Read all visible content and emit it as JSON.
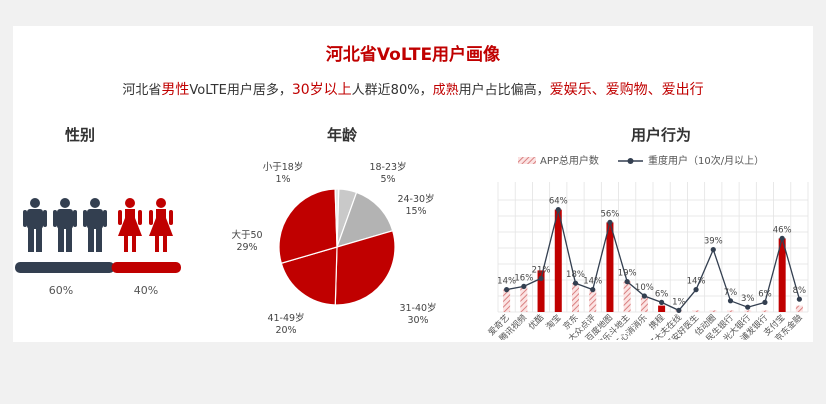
{
  "header": {
    "title": "河北省VoLTE用户画像",
    "subtitle": {
      "p1": "河北省",
      "p2": "男性",
      "p3": "VoLTE用户居多，",
      "p4": "30岁以上",
      "p5": "人群近80%，",
      "p6": "成熟",
      "p7": "用户占比偏高，",
      "p8": "爱娱乐、爱购物、爱出行"
    }
  },
  "gender": {
    "title": "性别",
    "male_pct_label": "60%",
    "female_pct_label": "40%",
    "male_share": 0.6,
    "colors": {
      "male": "#333f50",
      "female": "#c00000"
    }
  },
  "age": {
    "title": "年龄",
    "chart_data": {
      "type": "pie",
      "slices": [
        {
          "label": "18-23岁",
          "pct_label": "5%",
          "value": 5,
          "color": "#c9c9c9"
        },
        {
          "label": "24-30岁",
          "pct_label": "15%",
          "value": 15,
          "color": "#b3b3b3"
        },
        {
          "label": "31-40岁",
          "pct_label": "30%",
          "value": 30,
          "color": "#c00000"
        },
        {
          "label": "41-49岁",
          "pct_label": "20%",
          "value": 20,
          "color": "#c00000"
        },
        {
          "label": "大于50",
          "pct_label": "29%",
          "value": 29,
          "color": "#c00000"
        },
        {
          "label": "小于18岁",
          "pct_label": "1%",
          "value": 1,
          "color": "#e6e6e6"
        }
      ]
    }
  },
  "behavior": {
    "title": "用户行为",
    "legend": {
      "bar": "APP总用户数",
      "line": "重度用户（10次/月以上）"
    },
    "chart_data": {
      "type": "bar",
      "categories": [
        "爱奇艺",
        "腾讯视频",
        "优酷",
        "淘宝",
        "京东",
        "大众点评",
        "百度地图",
        "欢乐斗地主",
        "开心消消乐",
        "携程",
        "好大夫在线",
        "平安好医生",
        "估动圈",
        "民生银行",
        "光大银行",
        "浦发银行",
        "支付宝",
        "京东金融"
      ],
      "series": [
        {
          "kind": "bar",
          "values": [
            14,
            16,
            26,
            64,
            18,
            14,
            56,
            19,
            10,
            4,
            1,
            1,
            1,
            1,
            1,
            1,
            46,
            4
          ],
          "highlighted": [
            false,
            false,
            true,
            true,
            false,
            false,
            true,
            false,
            false,
            true,
            false,
            false,
            false,
            false,
            false,
            false,
            true,
            false
          ]
        },
        {
          "kind": "line",
          "values": [
            14,
            16,
            21,
            64,
            18,
            14,
            56,
            19,
            10,
            6,
            1,
            14,
            39,
            7,
            3,
            6,
            46,
            8
          ]
        }
      ],
      "data_labels": [
        "14%",
        "16%",
        "21%",
        "64%",
        "18%",
        "14%",
        "56%",
        "19%",
        "10%",
        "6%",
        "1%",
        "14%",
        "39%",
        "7%",
        "3%",
        "6%",
        "46%",
        "8%"
      ],
      "ylim": [
        0,
        70
      ],
      "colors": {
        "bar": "#c00000",
        "hatch": "#e8a0a0",
        "line": "#333f50"
      }
    }
  }
}
